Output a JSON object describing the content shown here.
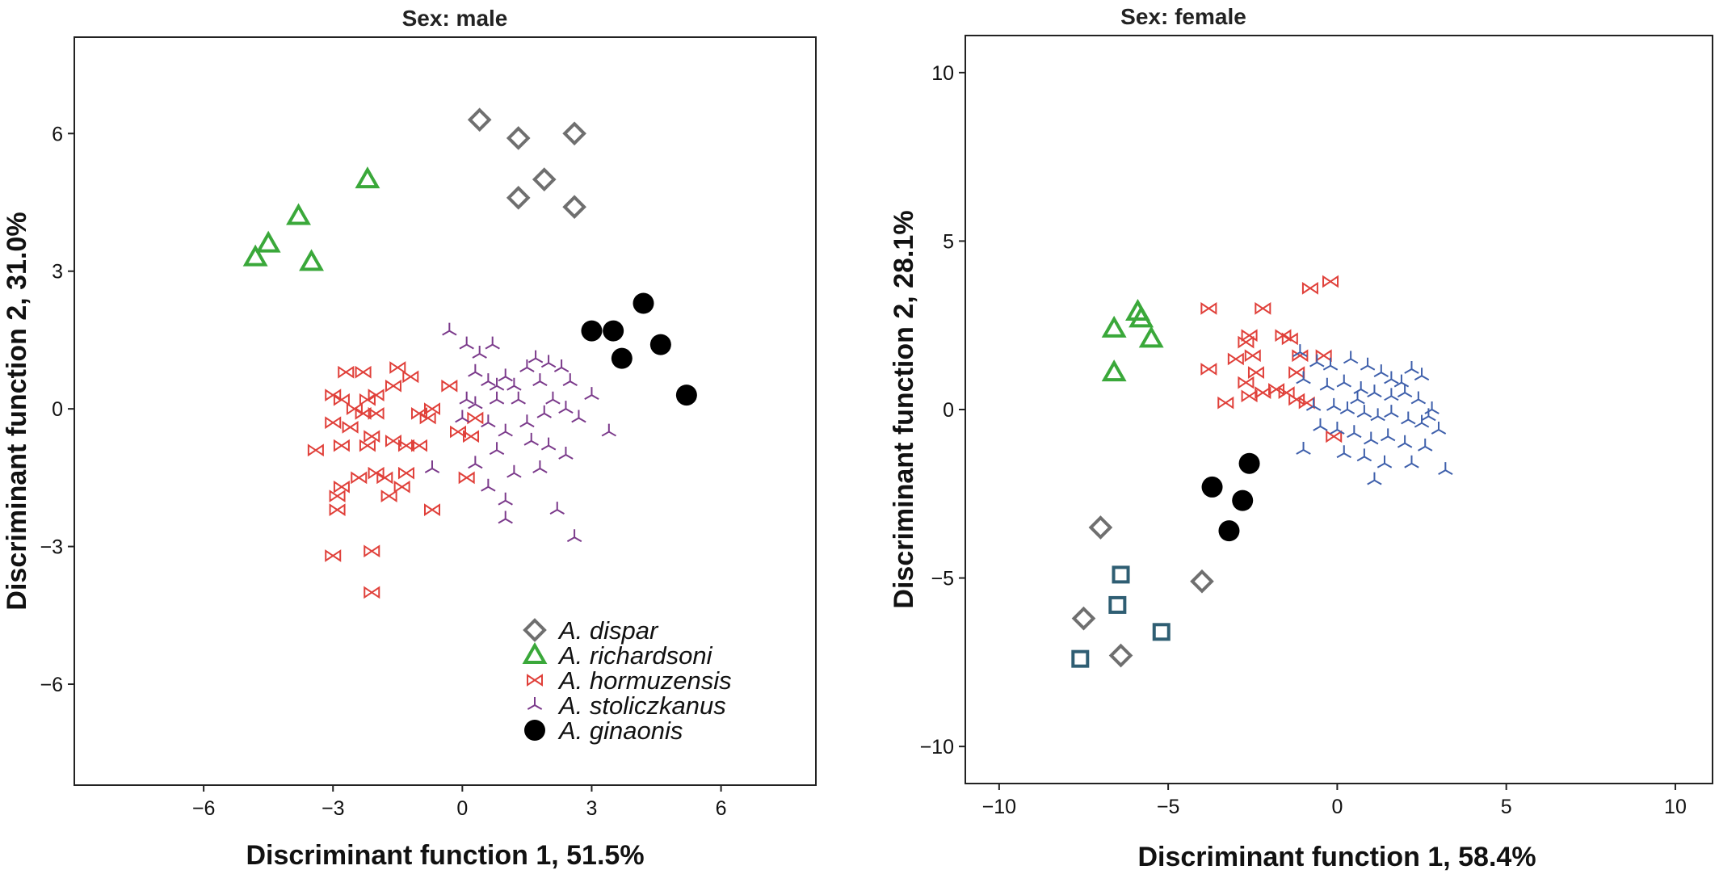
{
  "chart_data": [
    {
      "type": "scatter",
      "title": "Sex: male",
      "xlabel": "Discriminant function 1, 51.5%",
      "ylabel": "Discriminant function 2, 31.0%",
      "xlim": [
        -9,
        8.2
      ],
      "ylim": [
        -8.2,
        8.1
      ],
      "xticks": [
        -6,
        -3,
        0,
        3,
        6
      ],
      "yticks": [
        -6,
        -3,
        0,
        3,
        6
      ],
      "xtick_labels": [
        "−6",
        "−3",
        "0",
        "3",
        "6"
      ],
      "ytick_labels": [
        "−6",
        "−3",
        "0",
        "3",
        "6"
      ],
      "grid": false,
      "legend_position": "bottom-right",
      "series": [
        {
          "name": "A. dispar",
          "marker": "diamond",
          "color": "#6f6f6f",
          "points": [
            [
              0.4,
              6.3
            ],
            [
              1.3,
              5.9
            ],
            [
              2.6,
              6.0
            ],
            [
              1.3,
              4.6
            ],
            [
              1.9,
              5.0
            ],
            [
              2.6,
              4.4
            ]
          ]
        },
        {
          "name": "A. richardsoni",
          "marker": "triangle",
          "color": "#3aa83a",
          "points": [
            [
              -2.2,
              5.0
            ],
            [
              -3.8,
              4.2
            ],
            [
              -4.5,
              3.6
            ],
            [
              -4.8,
              3.3
            ],
            [
              -3.5,
              3.2
            ]
          ]
        },
        {
          "name": "A. hormuzensis",
          "marker": "bowtie",
          "color": "#e0403a",
          "points": [
            [
              -3.0,
              0.3
            ],
            [
              -2.8,
              0.2
            ],
            [
              -2.2,
              0.2
            ],
            [
              -2.0,
              0.3
            ],
            [
              -2.5,
              0.0
            ],
            [
              -2.3,
              -0.1
            ],
            [
              -2.0,
              -0.1
            ],
            [
              -3.0,
              -0.3
            ],
            [
              -2.6,
              -0.4
            ],
            [
              -2.1,
              -0.6
            ],
            [
              -3.4,
              -0.9
            ],
            [
              -2.8,
              -0.8
            ],
            [
              -2.2,
              -0.8
            ],
            [
              -1.6,
              -0.7
            ],
            [
              -1.3,
              -0.8
            ],
            [
              -1.0,
              -0.1
            ],
            [
              -0.7,
              0.0
            ],
            [
              -0.8,
              -0.2
            ],
            [
              -1.6,
              0.5
            ],
            [
              -1.5,
              0.9
            ],
            [
              -1.2,
              0.7
            ],
            [
              -2.7,
              0.8
            ],
            [
              -2.3,
              0.8
            ],
            [
              -0.3,
              0.5
            ],
            [
              -0.1,
              -0.5
            ],
            [
              0.2,
              -0.6
            ],
            [
              0.3,
              -0.2
            ],
            [
              -2.8,
              -1.7
            ],
            [
              -2.9,
              -1.9
            ],
            [
              -2.4,
              -1.5
            ],
            [
              -2.0,
              -1.4
            ],
            [
              -1.8,
              -1.5
            ],
            [
              -1.7,
              -1.9
            ],
            [
              -1.4,
              -1.7
            ],
            [
              -1.3,
              -1.4
            ],
            [
              -0.7,
              -2.2
            ],
            [
              -2.9,
              -2.2
            ],
            [
              0.1,
              -1.5
            ],
            [
              -3.0,
              -3.2
            ],
            [
              -2.1,
              -3.1
            ],
            [
              -2.1,
              -4.0
            ],
            [
              -1.0,
              -0.8
            ]
          ]
        },
        {
          "name": "A. stoliczkanus",
          "marker": "tri",
          "color": "#7b3a8b",
          "points": [
            [
              -0.3,
              1.7
            ],
            [
              0.1,
              1.4
            ],
            [
              0.4,
              1.2
            ],
            [
              0.7,
              1.4
            ],
            [
              0.3,
              0.8
            ],
            [
              0.6,
              0.6
            ],
            [
              0.8,
              0.5
            ],
            [
              1.0,
              0.7
            ],
            [
              1.2,
              0.5
            ],
            [
              1.5,
              0.9
            ],
            [
              1.7,
              1.1
            ],
            [
              2.0,
              1.0
            ],
            [
              2.3,
              0.9
            ],
            [
              2.5,
              0.6
            ],
            [
              1.8,
              0.6
            ],
            [
              1.3,
              0.2
            ],
            [
              0.8,
              0.2
            ],
            [
              0.3,
              0.1
            ],
            [
              0.0,
              -0.2
            ],
            [
              0.6,
              -0.3
            ],
            [
              1.0,
              -0.5
            ],
            [
              1.5,
              -0.3
            ],
            [
              1.9,
              -0.1
            ],
            [
              2.1,
              0.2
            ],
            [
              2.4,
              0.0
            ],
            [
              2.7,
              -0.2
            ],
            [
              3.0,
              0.3
            ],
            [
              1.6,
              -0.7
            ],
            [
              2.0,
              -0.8
            ],
            [
              2.4,
              -1.0
            ],
            [
              0.8,
              -0.9
            ],
            [
              0.3,
              -1.2
            ],
            [
              -0.7,
              -1.3
            ],
            [
              0.6,
              -1.7
            ],
            [
              1.2,
              -1.4
            ],
            [
              1.8,
              -1.3
            ],
            [
              1.0,
              -2.0
            ],
            [
              2.2,
              -2.2
            ],
            [
              1.0,
              -2.4
            ],
            [
              2.6,
              -2.8
            ],
            [
              3.4,
              -0.5
            ],
            [
              0.1,
              0.2
            ]
          ]
        },
        {
          "name": "A. ginaonis",
          "marker": "circle",
          "color": "#000000",
          "points": [
            [
              4.2,
              2.3
            ],
            [
              3.0,
              1.7
            ],
            [
              3.5,
              1.7
            ],
            [
              3.7,
              1.1
            ],
            [
              4.6,
              1.4
            ],
            [
              5.2,
              0.3
            ]
          ]
        }
      ]
    },
    {
      "type": "scatter",
      "title": "Sex: female",
      "xlabel": "Discriminant function 1, 58.4%",
      "ylabel": "Discriminant function 2, 28.1%",
      "xlim": [
        -11,
        11.1
      ],
      "ylim": [
        -11.1,
        11.1
      ],
      "xticks": [
        -10,
        -5,
        0,
        5,
        10
      ],
      "yticks": [
        -10,
        -5,
        0,
        5,
        10
      ],
      "xtick_labels": [
        "−10",
        "−5",
        "0",
        "5",
        "10"
      ],
      "ytick_labels": [
        "−10",
        "−5",
        "0",
        "5",
        "10"
      ],
      "grid": false,
      "series": [
        {
          "name": "",
          "marker": "diamond",
          "color": "#6f6f6f",
          "points": [
            [
              -7.0,
              -3.5
            ],
            [
              -4.0,
              -5.1
            ],
            [
              -7.5,
              -6.2
            ],
            [
              -6.4,
              -7.3
            ]
          ]
        },
        {
          "name": "",
          "marker": "square",
          "color": "#2f5e73",
          "points": [
            [
              -6.4,
              -4.9
            ],
            [
              -6.5,
              -5.8
            ],
            [
              -5.2,
              -6.6
            ],
            [
              -7.6,
              -7.4
            ]
          ]
        },
        {
          "name": "",
          "marker": "triangle",
          "color": "#3aa83a",
          "points": [
            [
              -5.9,
              2.9
            ],
            [
              -5.8,
              2.7
            ],
            [
              -6.6,
              2.4
            ],
            [
              -5.5,
              2.1
            ],
            [
              -6.6,
              1.1
            ]
          ]
        },
        {
          "name": "",
          "marker": "bowtie",
          "color": "#e0403a",
          "points": [
            [
              -0.2,
              3.8
            ],
            [
              -0.8,
              3.6
            ],
            [
              -2.2,
              3.0
            ],
            [
              -3.8,
              3.0
            ],
            [
              -1.6,
              2.2
            ],
            [
              -1.4,
              2.1
            ],
            [
              -2.6,
              2.2
            ],
            [
              -2.7,
              2.0
            ],
            [
              -2.5,
              1.6
            ],
            [
              -3.0,
              1.5
            ],
            [
              -0.4,
              1.6
            ],
            [
              -1.1,
              1.6
            ],
            [
              -3.8,
              1.2
            ],
            [
              -2.4,
              1.1
            ],
            [
              -1.2,
              1.1
            ],
            [
              -2.7,
              0.8
            ],
            [
              -2.2,
              0.5
            ],
            [
              -1.8,
              0.6
            ],
            [
              -1.5,
              0.5
            ],
            [
              -1.2,
              0.3
            ],
            [
              -0.9,
              0.2
            ],
            [
              -2.6,
              0.4
            ],
            [
              -3.3,
              0.2
            ],
            [
              -0.1,
              -0.8
            ]
          ]
        },
        {
          "name": "",
          "marker": "tri",
          "color": "#3e5fab",
          "points": [
            [
              -1.1,
              1.7
            ],
            [
              -0.6,
              1.4
            ],
            [
              -0.2,
              1.3
            ],
            [
              0.4,
              1.5
            ],
            [
              0.9,
              1.3
            ],
            [
              1.3,
              1.1
            ],
            [
              1.6,
              0.9
            ],
            [
              2.2,
              1.2
            ],
            [
              2.5,
              1.0
            ],
            [
              -1.0,
              0.9
            ],
            [
              -0.3,
              0.7
            ],
            [
              0.2,
              0.8
            ],
            [
              0.7,
              0.6
            ],
            [
              1.1,
              0.5
            ],
            [
              1.6,
              0.4
            ],
            [
              2.0,
              0.5
            ],
            [
              2.4,
              0.3
            ],
            [
              2.8,
              0.0
            ],
            [
              -0.7,
              0.1
            ],
            [
              -0.1,
              0.1
            ],
            [
              0.3,
              0.0
            ],
            [
              0.8,
              -0.1
            ],
            [
              1.2,
              -0.2
            ],
            [
              1.6,
              -0.1
            ],
            [
              2.1,
              -0.3
            ],
            [
              2.5,
              -0.4
            ],
            [
              3.0,
              -0.6
            ],
            [
              -0.5,
              -0.5
            ],
            [
              0.0,
              -0.6
            ],
            [
              0.5,
              -0.7
            ],
            [
              1.0,
              -0.9
            ],
            [
              1.5,
              -0.8
            ],
            [
              2.0,
              -1.0
            ],
            [
              2.6,
              -1.1
            ],
            [
              0.2,
              -1.3
            ],
            [
              0.8,
              -1.4
            ],
            [
              1.4,
              -1.6
            ],
            [
              2.2,
              -1.6
            ],
            [
              -1.0,
              -1.2
            ],
            [
              1.1,
              -2.1
            ],
            [
              3.2,
              -1.8
            ],
            [
              2.7,
              -0.2
            ],
            [
              0.6,
              0.3
            ],
            [
              1.9,
              0.8
            ]
          ]
        },
        {
          "name": "",
          "marker": "circle",
          "color": "#000000",
          "points": [
            [
              -2.6,
              -1.6
            ],
            [
              -3.7,
              -2.3
            ],
            [
              -2.8,
              -2.7
            ],
            [
              -3.2,
              -3.6
            ]
          ]
        }
      ]
    }
  ]
}
